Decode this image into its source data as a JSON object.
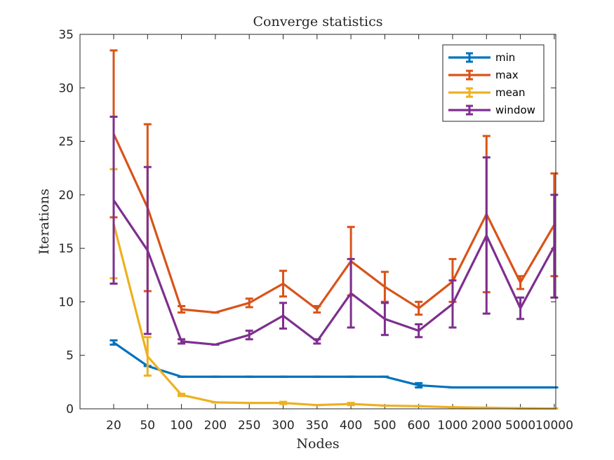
{
  "chart_data": {
    "type": "line",
    "title": "Converge statistics",
    "xlabel": "Nodes",
    "ylabel": "Iterations",
    "categories": [
      "20",
      "50",
      "100",
      "200",
      "250",
      "300",
      "350",
      "400",
      "500",
      "600",
      "1000",
      "2000",
      "5000",
      "10000"
    ],
    "ylim": [
      0,
      35
    ],
    "yticks": [
      0,
      5,
      10,
      15,
      20,
      25,
      30,
      35
    ],
    "grid": false,
    "legend_position": "top-right",
    "error_bars": true,
    "series": [
      {
        "name": "min",
        "color": "#0072BD",
        "values": [
          6.2,
          4.0,
          3.0,
          3.0,
          3.0,
          3.0,
          3.0,
          3.0,
          3.0,
          2.2,
          2.0,
          2.0,
          2.0,
          2.0
        ],
        "err_low": [
          0.2,
          0,
          0,
          0,
          0,
          0,
          0,
          0,
          0,
          0.2,
          0,
          0,
          0,
          0
        ],
        "err_high": [
          0.2,
          0,
          0,
          0,
          0,
          0,
          0,
          0,
          0,
          0.2,
          0,
          0,
          0,
          0
        ]
      },
      {
        "name": "max",
        "color": "#D95319",
        "values": [
          25.7,
          18.8,
          9.3,
          9.0,
          9.9,
          11.7,
          9.3,
          13.8,
          11.4,
          9.4,
          11.9,
          18.2,
          11.8,
          17.2
        ],
        "err_low": [
          7.8,
          7.8,
          0.3,
          0,
          0.4,
          1.2,
          0.3,
          3.2,
          1.4,
          0.6,
          1.9,
          7.3,
          0.6,
          4.8
        ],
        "err_high": [
          7.8,
          7.8,
          0.3,
          0,
          0.4,
          1.2,
          0.3,
          3.2,
          1.4,
          0.6,
          2.1,
          7.3,
          0.6,
          4.8
        ]
      },
      {
        "name": "mean",
        "color": "#EDB120",
        "values": [
          17.3,
          4.9,
          1.3,
          0.6,
          0.55,
          0.55,
          0.35,
          0.45,
          0.3,
          0.25,
          0.15,
          0.1,
          0.05,
          0.03
        ],
        "err_low": [
          5.1,
          1.8,
          0.1,
          0,
          0,
          0.1,
          0,
          0.1,
          0,
          0,
          0,
          0,
          0,
          0
        ],
        "err_high": [
          5.1,
          1.8,
          0.1,
          0,
          0,
          0.1,
          0,
          0.1,
          0,
          0,
          0,
          0,
          0,
          0
        ]
      },
      {
        "name": "window",
        "color": "#7E2F8E",
        "values": [
          19.5,
          14.8,
          6.3,
          6.0,
          6.9,
          8.7,
          6.3,
          10.8,
          8.4,
          7.3,
          9.8,
          16.2,
          9.4,
          15.2
        ],
        "err_low": [
          7.8,
          7.8,
          0.2,
          0,
          0.4,
          1.2,
          0.2,
          3.2,
          1.5,
          0.6,
          2.2,
          7.3,
          1.0,
          4.8
        ],
        "err_high": [
          7.8,
          7.8,
          0.2,
          0,
          0.4,
          1.2,
          0.2,
          3.2,
          1.5,
          0.6,
          2.2,
          7.3,
          1.0,
          4.8
        ]
      }
    ]
  }
}
